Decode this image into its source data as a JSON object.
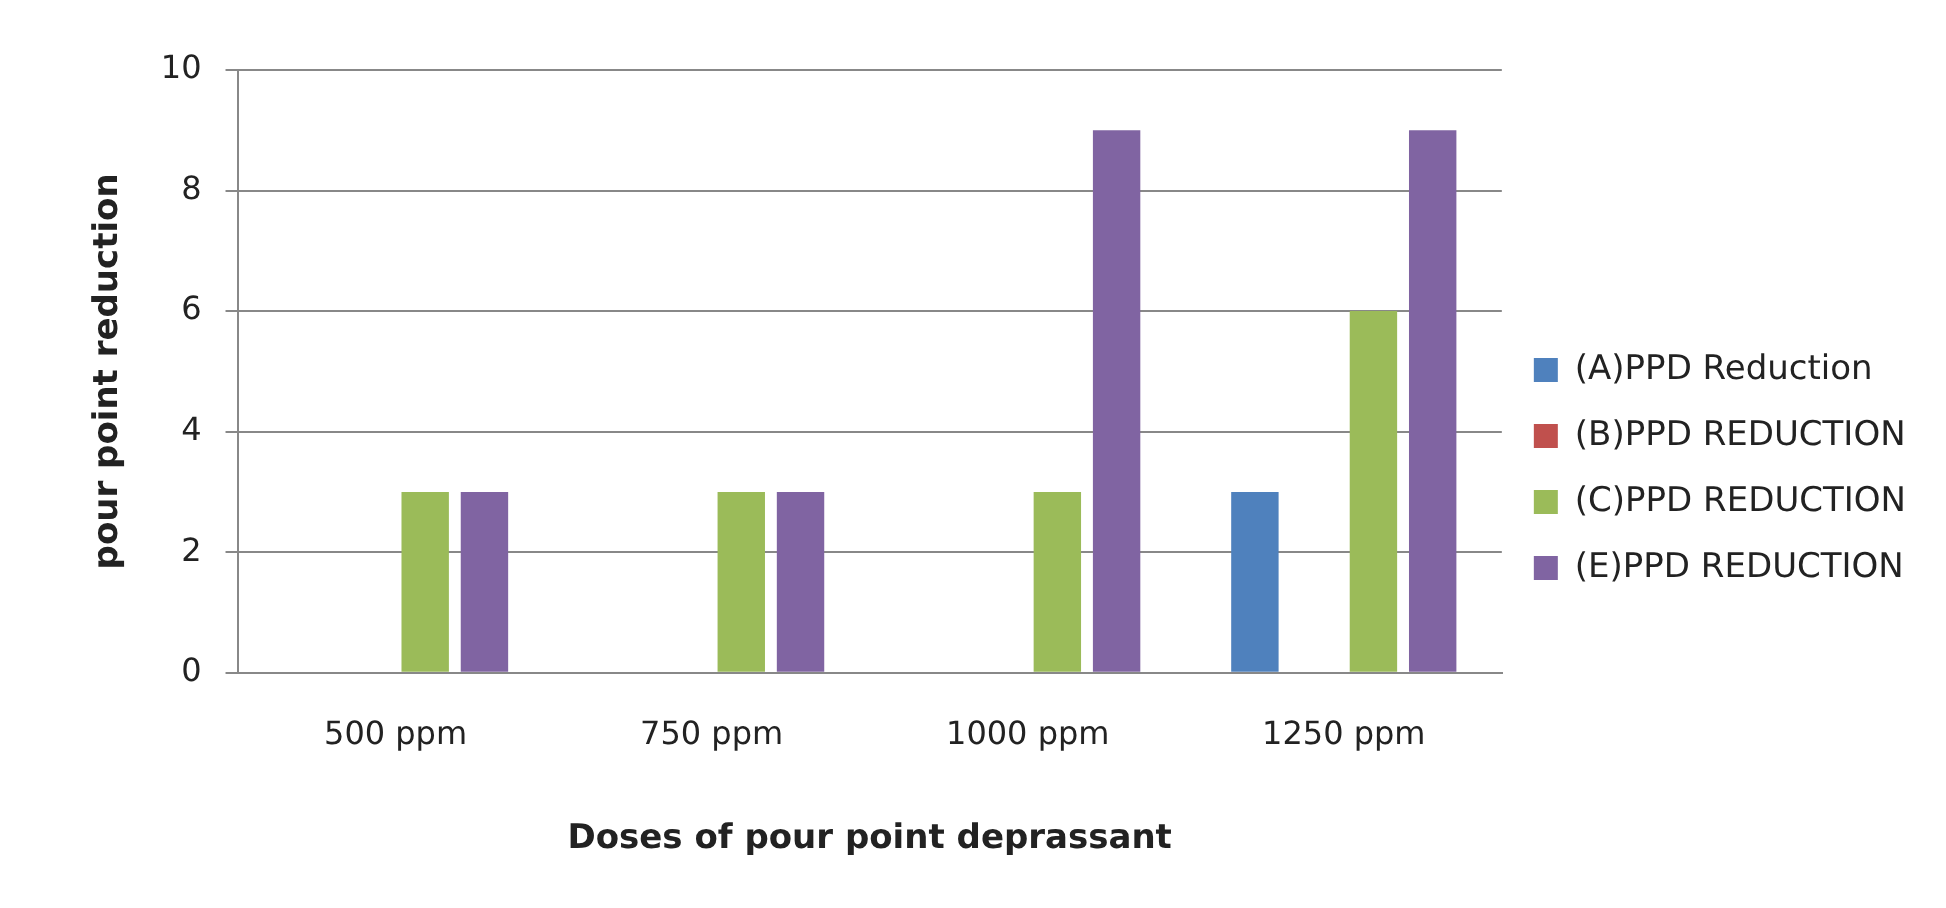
{
  "chart_data": {
    "type": "bar",
    "xlabel": "Doses of pour point deprassant",
    "ylabel": "pour point reduction",
    "categories": [
      "500 ppm",
      "750 ppm",
      "1000 ppm",
      "1250 ppm"
    ],
    "series": [
      {
        "name": "(A)PPD Reduction",
        "color": "#4f81bd",
        "values": [
          0,
          0,
          0,
          3
        ]
      },
      {
        "name": "(B)PPD REDUCTION",
        "color": "#c0504d",
        "values": [
          0,
          0,
          0,
          0
        ]
      },
      {
        "name": "(C)PPD REDUCTION",
        "color": "#9bbb59",
        "values": [
          3,
          3,
          3,
          6
        ]
      },
      {
        "name": "(E)PPD REDUCTION",
        "color": "#8064a2",
        "values": [
          3,
          3,
          9,
          9
        ]
      }
    ],
    "ylim": [
      0,
      10
    ],
    "yticks": [
      0,
      2,
      4,
      6,
      8,
      10
    ],
    "grid": "y",
    "legend": "right"
  }
}
